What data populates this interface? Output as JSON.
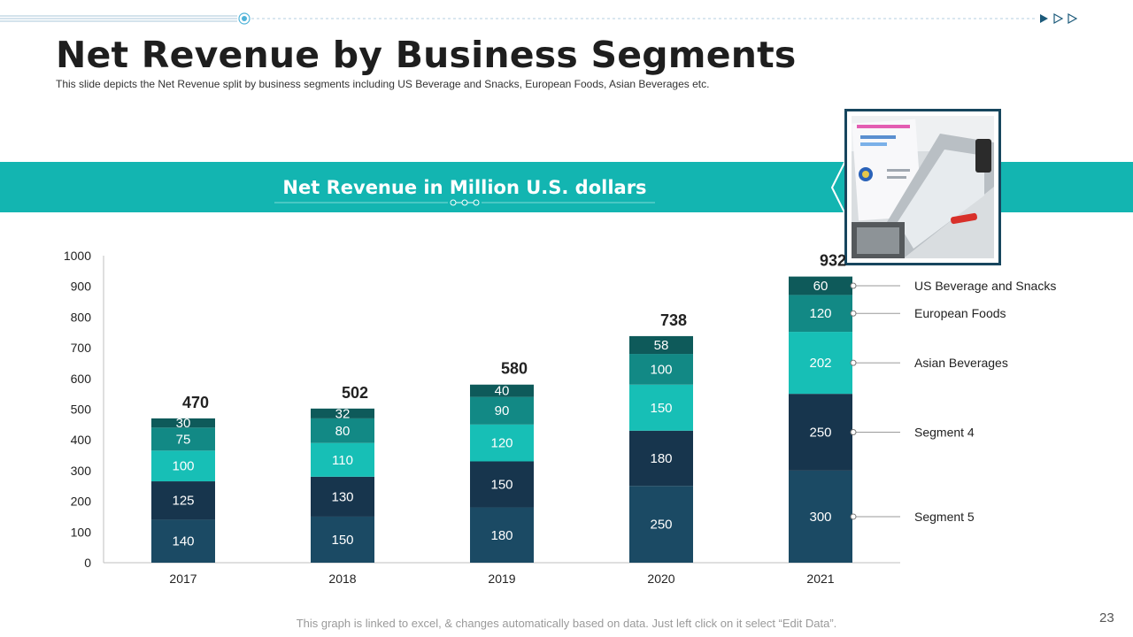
{
  "slide": {
    "title": "Net Revenue by Business Segments",
    "subtitle": "This slide depicts the Net Revenue  split by business segments including US Beverage  and Snacks, European Foods, Asian Beverages  etc.",
    "band_title": "Net Revenue in Million U.S. dollars",
    "footnote": "This graph is linked to excel,  & changes automatically based on data. Just left click on it select “Edit Data”.",
    "page_number": "23",
    "photo_icon": "laptop-photo-icon",
    "colors": {
      "band": "#13b5b1",
      "frame": "#17465e"
    }
  },
  "chart_data": {
    "type": "bar",
    "stacked": true,
    "categories": [
      "2017",
      "2018",
      "2019",
      "2020",
      "2021"
    ],
    "series": [
      {
        "name": "Segment 5",
        "color": "#1b4a64",
        "values": [
          140,
          150,
          180,
          250,
          300
        ]
      },
      {
        "name": "Segment 4",
        "color": "#17354d",
        "values": [
          125,
          130,
          150,
          180,
          250
        ]
      },
      {
        "name": "Asian Beverages",
        "color": "#17bfb6",
        "values": [
          100,
          110,
          120,
          150,
          202
        ]
      },
      {
        "name": "European Foods",
        "color": "#128985",
        "values": [
          75,
          80,
          90,
          100,
          120
        ]
      },
      {
        "name": "US Beverage and Snacks",
        "color": "#0e5a5a",
        "values": [
          30,
          32,
          40,
          58,
          60
        ]
      }
    ],
    "totals": [
      470,
      502,
      580,
      738,
      932
    ],
    "ylim": [
      0,
      1000
    ],
    "yticks": [
      0,
      100,
      200,
      300,
      400,
      500,
      600,
      700,
      800,
      900,
      1000
    ],
    "grid": false,
    "legend_position": "right"
  }
}
